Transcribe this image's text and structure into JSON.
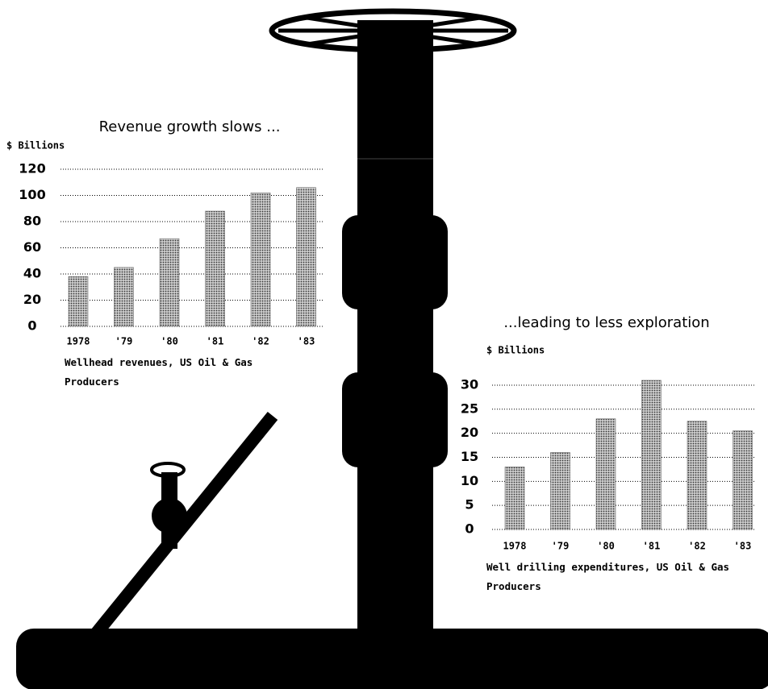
{
  "chart_data": [
    {
      "type": "bar",
      "title": "Revenue growth slows ...",
      "y_label": "$ Billions",
      "categories": [
        "1978",
        "'79",
        "'80",
        "'81",
        "'82",
        "'83"
      ],
      "values": [
        38,
        45,
        67,
        88,
        102,
        106
      ],
      "color": "#9a9a9a",
      "ylim": [
        0,
        120
      ],
      "yticks": [
        0,
        20,
        40,
        60,
        80,
        100,
        120
      ],
      "grid": true,
      "caption": "Wellhead revenues, US Oil & Gas Producers"
    },
    {
      "type": "bar",
      "title": "...leading to less exploration",
      "y_label": "$ Billions",
      "categories": [
        "1978",
        "'79",
        "'80",
        "'81",
        "'82",
        "'83"
      ],
      "values": [
        13,
        16,
        23,
        31,
        22.5,
        20.5
      ],
      "color": "#9a9a9a",
      "ylim": [
        0,
        32
      ],
      "yticks": [
        0,
        5,
        10,
        15,
        20,
        25,
        30
      ],
      "grid": true,
      "caption": "Well drilling expenditures, US Oil & Gas Producers"
    }
  ]
}
